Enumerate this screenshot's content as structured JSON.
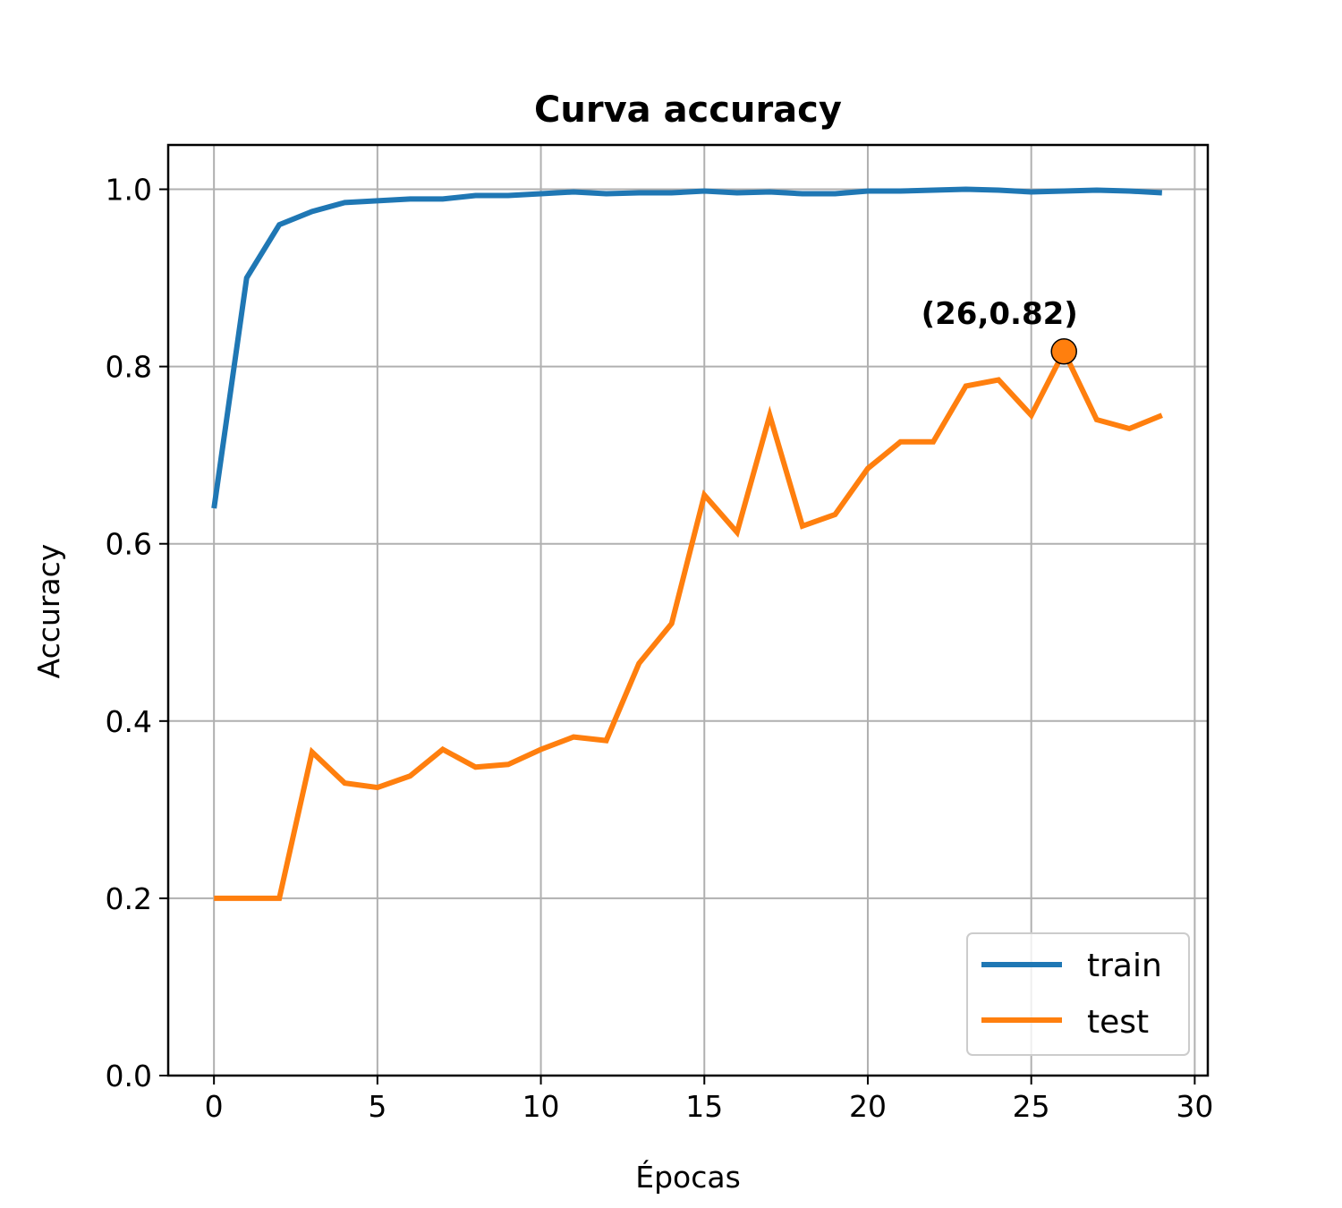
{
  "chart_data": {
    "type": "line",
    "title": "Curva accuracy",
    "xlabel": "Épocas",
    "ylabel": "Accuracy",
    "xlim": [
      -1.4,
      30.4
    ],
    "ylim": [
      0.0,
      1.05
    ],
    "xticks": [
      0,
      5,
      10,
      15,
      20,
      25,
      30
    ],
    "yticks": [
      0.0,
      0.2,
      0.4,
      0.6,
      0.8,
      1.0
    ],
    "ytick_labels": [
      "0.0",
      "0.2",
      "0.4",
      "0.6",
      "0.8",
      "1.0"
    ],
    "grid": true,
    "legend_position": "bottom-right",
    "x": [
      0,
      1,
      2,
      3,
      4,
      5,
      6,
      7,
      8,
      9,
      10,
      11,
      12,
      13,
      14,
      15,
      16,
      17,
      18,
      19,
      20,
      21,
      22,
      23,
      24,
      25,
      26,
      27,
      28,
      29
    ],
    "series": [
      {
        "name": "train",
        "color": "#1f77b4",
        "values": [
          0.64,
          0.9,
          0.96,
          0.975,
          0.985,
          0.987,
          0.989,
          0.989,
          0.993,
          0.993,
          0.995,
          0.997,
          0.995,
          0.996,
          0.996,
          0.998,
          0.996,
          0.997,
          0.995,
          0.995,
          0.998,
          0.998,
          0.999,
          1.0,
          0.999,
          0.997,
          0.998,
          0.999,
          0.998,
          0.996
        ]
      },
      {
        "name": "test",
        "color": "#ff7f0e",
        "values": [
          0.2,
          0.2,
          0.2,
          0.365,
          0.33,
          0.325,
          0.338,
          0.368,
          0.348,
          0.351,
          0.368,
          0.382,
          0.378,
          0.465,
          0.51,
          0.655,
          0.613,
          0.745,
          0.62,
          0.633,
          0.685,
          0.715,
          0.715,
          0.778,
          0.785,
          0.745,
          0.817,
          0.74,
          0.73,
          0.745
        ]
      }
    ],
    "annotation": {
      "label": "(26,0.82)",
      "x": 26,
      "y": 0.817,
      "marker_color": "#ff7f0e"
    }
  }
}
